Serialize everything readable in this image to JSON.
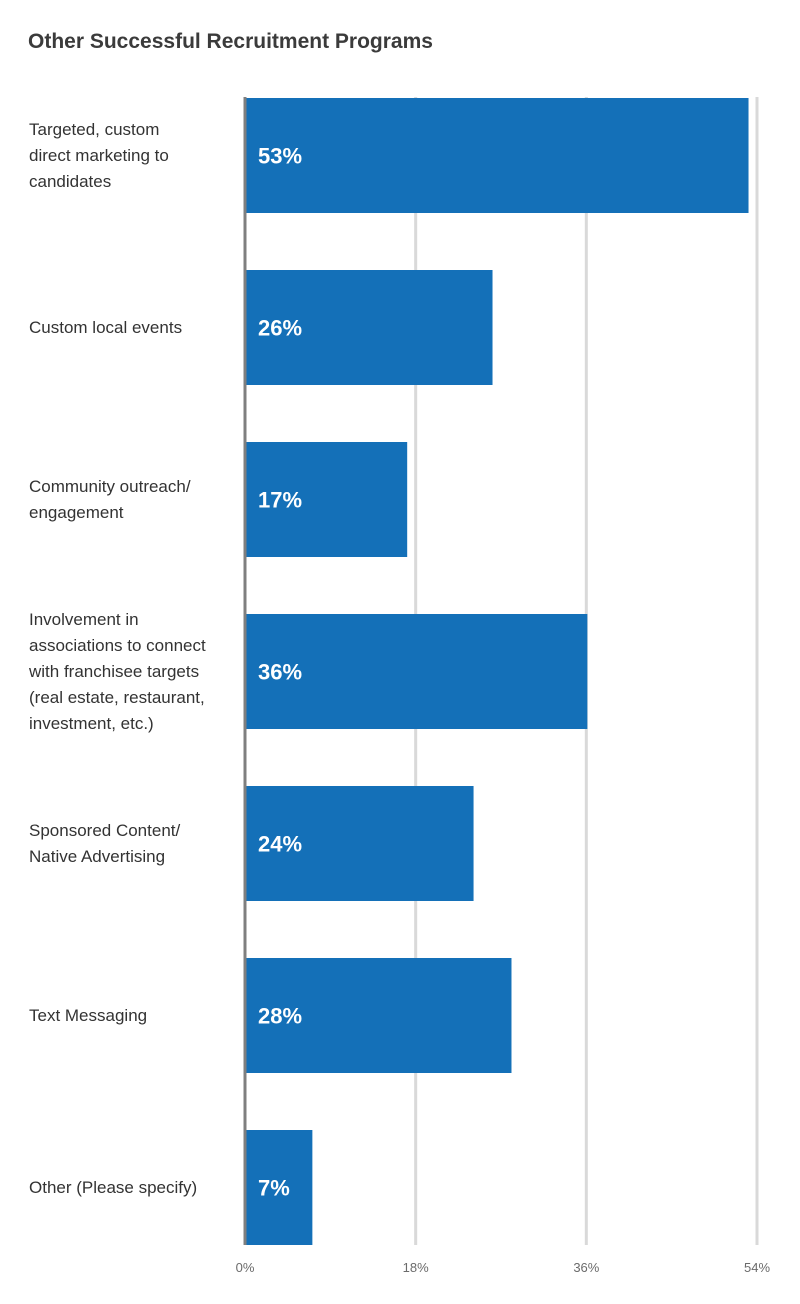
{
  "chart_data": {
    "type": "bar",
    "orientation": "horizontal",
    "title": "Other Successful Recruitment Programs",
    "categories": [
      "Targeted, custom\ndirect marketing to\ncandidates",
      "Custom local events",
      "Community outreach/\nengagement",
      "Involvement in\nassociations to connect\nwith franchisee targets\n(real estate, restaurant,\ninvestment, etc.)",
      "Sponsored Content/\nNative Advertising",
      "Text Messaging",
      "Other (Please specify)"
    ],
    "values": [
      53,
      26,
      17,
      36,
      24,
      28,
      7
    ],
    "data_labels": [
      "53%",
      "26%",
      "17%",
      "36%",
      "24%",
      "28%",
      "7%"
    ],
    "xlim": [
      0,
      54
    ],
    "xticks": [
      0,
      18,
      36,
      54
    ],
    "xtick_labels": [
      "0%",
      "18%",
      "36%",
      "54%"
    ],
    "grid": true,
    "legend": "none",
    "colors": {
      "bar": "#1470b8",
      "grid": "#d9d9d9",
      "axis": "#7f7f7f",
      "bar_label": "#ffffff",
      "tick_label": "#6b6b6b",
      "category_label": "#333333",
      "title": "#3b3b3b"
    }
  }
}
